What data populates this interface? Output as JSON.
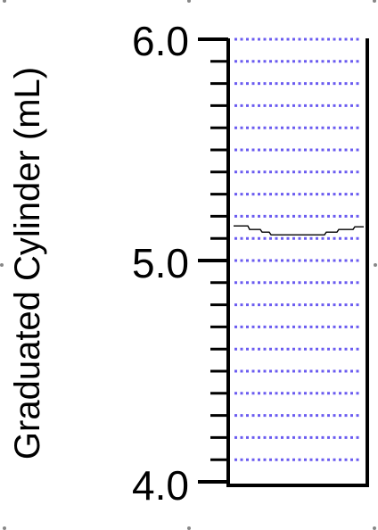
{
  "axis_label": "Graduated Cylinder (mL)",
  "tick_labels": [
    "6.0",
    "5.0",
    "4.0"
  ],
  "scale": {
    "min": 4.0,
    "max": 6.0,
    "minor_step": 0.1
  },
  "meniscus_reading": 5.1,
  "colors": {
    "liquid_dots": "#6b5cf0",
    "lines": "#000000",
    "background": "#ffffff"
  }
}
